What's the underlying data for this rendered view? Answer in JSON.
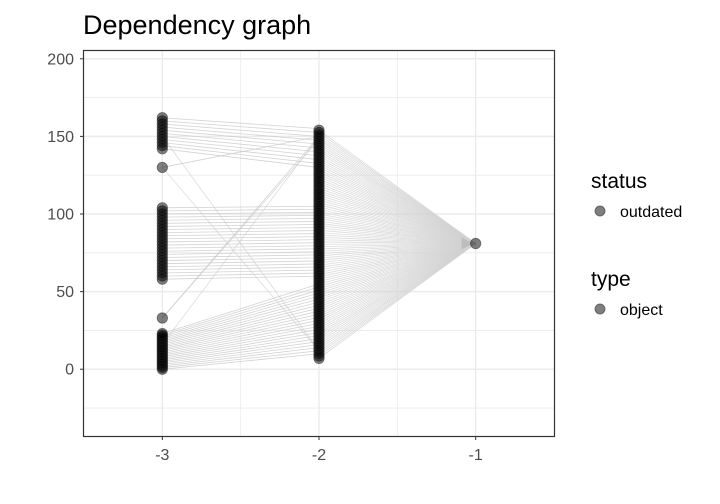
{
  "chart_data": {
    "type": "scatter",
    "title": "Dependency graph",
    "xlabel": "",
    "ylabel": "",
    "xlim": [
      -3.5,
      -0.5
    ],
    "ylim": [
      -43,
      205
    ],
    "x_ticks": [
      -3,
      -2,
      -1
    ],
    "x_tick_labels": [
      "-3",
      "-2",
      "-1"
    ],
    "y_ticks": [
      0,
      50,
      100,
      150,
      200
    ],
    "y_tick_labels": [
      "0",
      "50",
      "100",
      "150",
      "200"
    ],
    "grid": true,
    "legend_position": "right",
    "legend": [
      {
        "title": "status",
        "entries": [
          "outdated"
        ]
      },
      {
        "title": "type",
        "entries": [
          "object"
        ]
      }
    ],
    "nodes": {
      "level_minus3": {
        "x": -3,
        "y": [
          0,
          1,
          2,
          3,
          4,
          5,
          6,
          7,
          8,
          9,
          10,
          11,
          12,
          13,
          14,
          15,
          16,
          17,
          18,
          19,
          20,
          21,
          22,
          23,
          33,
          58,
          60,
          62,
          64,
          66,
          68,
          70,
          72,
          74,
          76,
          78,
          80,
          82,
          84,
          86,
          88,
          90,
          92,
          94,
          96,
          98,
          100,
          102,
          104,
          130,
          142,
          144,
          146,
          148,
          150,
          152,
          154,
          156,
          158,
          160,
          162
        ]
      },
      "level_minus2": {
        "x": -2,
        "y_range": [
          7,
          155
        ]
      },
      "level_minus1": {
        "x": -1,
        "y": [
          81
        ]
      }
    },
    "colors": {
      "point": "#000000",
      "edge": "#c8c8c8",
      "panel_border": "#333333",
      "grid": "#ebebeb"
    }
  }
}
